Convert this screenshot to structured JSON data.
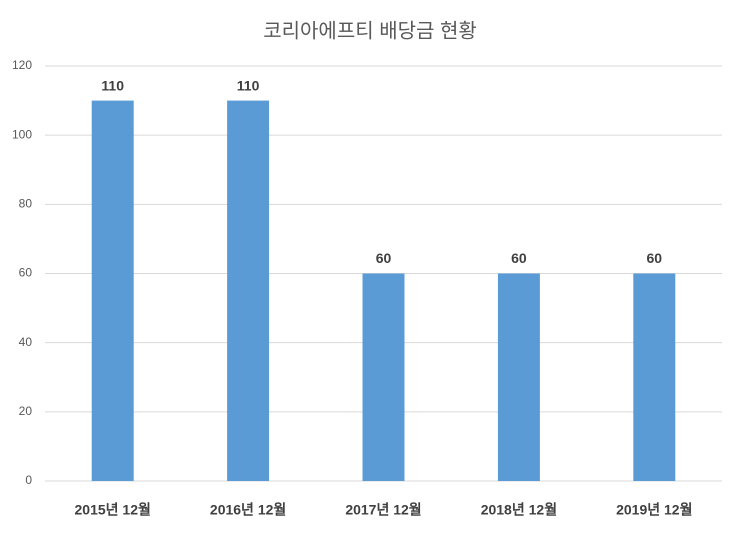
{
  "chart_data": {
    "type": "bar",
    "title": "코리아에프티 배당금 현황",
    "categories": [
      "2015년 12월",
      "2016년 12월",
      "2017년 12월",
      "2018년 12월",
      "2019년 12월"
    ],
    "values": [
      110,
      110,
      60,
      60,
      60
    ],
    "color": "#5b9bd5",
    "ylim": [
      0,
      120
    ],
    "yticks": [
      0,
      20,
      40,
      60,
      80,
      100,
      120
    ],
    "grid": true
  }
}
